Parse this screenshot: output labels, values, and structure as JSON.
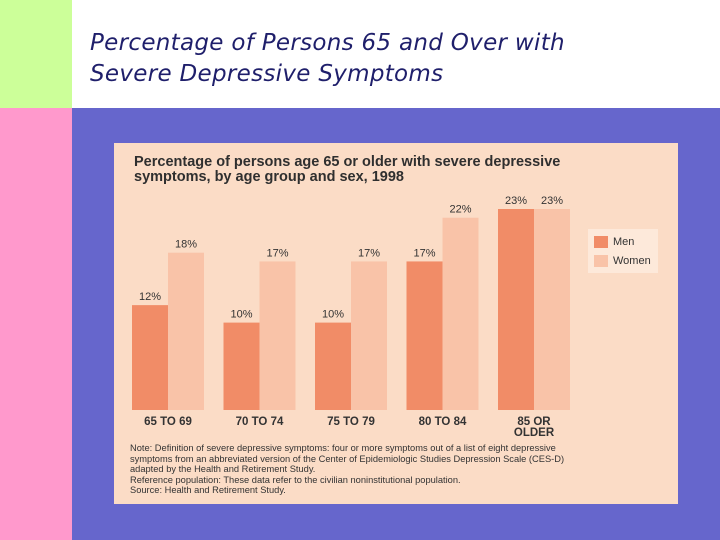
{
  "slide": {
    "title_line1": "Percentage of Persons 65 and Over with",
    "title_line2": "Severe Depressive Symptoms"
  },
  "colors": {
    "corner_green": "#ccff99",
    "strip_pink": "#ff99cc",
    "panel_purple": "#6666cc",
    "chart_background": "#fbdcc6",
    "men": "#f18c67",
    "women": "#f9c3a8"
  },
  "chart_data": {
    "type": "bar",
    "title_line1": "Percentage of persons age 65 or older with severe depressive",
    "title_line2": "symptoms, by age group and sex, 1998",
    "categories": [
      [
        "65 TO 69"
      ],
      [
        "70 TO 74"
      ],
      [
        "75 TO 79"
      ],
      [
        "80 TO 84"
      ],
      [
        "85 OR",
        "OLDER"
      ]
    ],
    "series": [
      {
        "name": "Men",
        "values": [
          12,
          10,
          10,
          17,
          23
        ]
      },
      {
        "name": "Women",
        "values": [
          18,
          17,
          17,
          22,
          23
        ]
      }
    ],
    "value_suffix": "%",
    "ylim": [
      0,
      23
    ],
    "grid": false,
    "legend_position": "right",
    "notes": [
      "Note: Definition of severe depressive symptoms: four or more symptoms out of a list of eight depressive",
      "symptoms from an abbreviated version of the Center of Epidemiologic Studies Depression Scale (CES-D)",
      "adapted by the Health and Retirement Study.",
      "Reference population: These data refer to the civilian noninstitutional population.",
      "Source: Health and Retirement Study."
    ]
  }
}
